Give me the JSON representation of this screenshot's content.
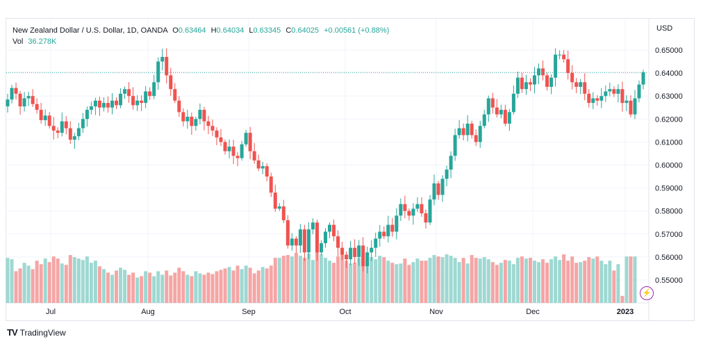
{
  "legend": {
    "symbol": "New Zealand Dollar / U.S. Dollar, 1D, OANDA",
    "open_label": "O",
    "open": "0.63464",
    "high_label": "H",
    "high": "0.64034",
    "low_label": "L",
    "low": "0.63345",
    "close_label": "C",
    "close": "0.64025",
    "change": "+0.00561 (+0.88%)",
    "vol_label": "Vol",
    "vol": "36.278K"
  },
  "brand": {
    "name": "TradingView",
    "logo": "TV"
  },
  "colors": {
    "up": "#26a69a",
    "down": "#ef5350",
    "up_vol": "#9ed8d2",
    "down_vol": "#f5a5a5",
    "grid": "#f0f3fa",
    "text": "#131722"
  },
  "icons": {
    "brand": "tradingview-logo-icon",
    "bolt": "lightning-icon"
  },
  "chart_data": {
    "type": "candlestick",
    "currency_label": "USD",
    "y_ticks": [
      "0.65000",
      "0.64000",
      "0.63000",
      "0.62000",
      "0.61000",
      "0.60000",
      "0.59000",
      "0.58000",
      "0.57000",
      "0.56000",
      "0.55000"
    ],
    "ylim": [
      0.5445,
      0.6555
    ],
    "x_ticks": [
      "Jul",
      "Aug",
      "Sep",
      "Oct",
      "Nov",
      "Dec",
      "2023"
    ],
    "x_tick_dates": [
      "2022-07-01",
      "2022-08-01",
      "2022-09-01",
      "2022-10-01",
      "2022-11-01",
      "2022-12-01",
      "2023-01-01"
    ],
    "last_price": 0.64025,
    "close_series": [
      0.6285,
      0.6335,
      0.631,
      0.6255,
      0.629,
      0.63,
      0.6265,
      0.624,
      0.6195,
      0.6215,
      0.617,
      0.615,
      0.614,
      0.619,
      0.616,
      0.611,
      0.6125,
      0.616,
      0.62,
      0.624,
      0.6255,
      0.628,
      0.625,
      0.627,
      0.625,
      0.628,
      0.626,
      0.631,
      0.633,
      0.63,
      0.626,
      0.628,
      0.627,
      0.632,
      0.63,
      0.636,
      0.645,
      0.647,
      0.639,
      0.633,
      0.628,
      0.623,
      0.619,
      0.621,
      0.617,
      0.62,
      0.624,
      0.619,
      0.617,
      0.615,
      0.612,
      0.61,
      0.606,
      0.608,
      0.604,
      0.603,
      0.609,
      0.614,
      0.606,
      0.602,
      0.5985,
      0.5995,
      0.595,
      0.588,
      0.581,
      0.582,
      0.576,
      0.565,
      0.568,
      0.565,
      0.572,
      0.562,
      0.572,
      0.575,
      0.562,
      0.566,
      0.571,
      0.574,
      0.569,
      0.564,
      0.561,
      0.559,
      0.564,
      0.56,
      0.565,
      0.556,
      0.562,
      0.564,
      0.568,
      0.571,
      0.569,
      0.574,
      0.571,
      0.578,
      0.583,
      0.58,
      0.578,
      0.581,
      0.583,
      0.579,
      0.575,
      0.585,
      0.592,
      0.587,
      0.594,
      0.598,
      0.604,
      0.613,
      0.616,
      0.613,
      0.618,
      0.613,
      0.61,
      0.617,
      0.622,
      0.629,
      0.625,
      0.622,
      0.624,
      0.618,
      0.623,
      0.631,
      0.638,
      0.633,
      0.636,
      0.635,
      0.639,
      0.642,
      0.639,
      0.634,
      0.638,
      0.648,
      0.648,
      0.646,
      0.64,
      0.636,
      0.634,
      0.636,
      0.631,
      0.627,
      0.629,
      0.628,
      0.63,
      0.632,
      0.633,
      0.631,
      0.633,
      0.627,
      0.628,
      0.622,
      0.629,
      0.635,
      0.6403
    ],
    "volume_series": [
      64,
      62,
      45,
      49,
      57,
      53,
      48,
      60,
      55,
      63,
      58,
      66,
      63,
      56,
      54,
      68,
      65,
      63,
      61,
      66,
      57,
      60,
      52,
      48,
      43,
      40,
      46,
      50,
      47,
      40,
      43,
      36,
      38,
      45,
      43,
      38,
      45,
      40,
      46,
      39,
      43,
      50,
      45,
      40,
      38,
      45,
      42,
      40,
      43,
      41,
      45,
      47,
      49,
      51,
      46,
      53,
      48,
      53,
      50,
      42,
      46,
      51,
      49,
      53,
      64,
      64,
      67,
      68,
      66,
      71,
      67,
      64,
      70,
      61,
      74,
      69,
      64,
      60,
      57,
      66,
      69,
      60,
      56,
      57,
      64,
      60,
      63,
      65,
      62,
      67,
      65,
      60,
      57,
      55,
      56,
      63,
      54,
      58,
      63,
      60,
      60,
      64,
      68,
      66,
      65,
      69,
      67,
      64,
      58,
      64,
      56,
      68,
      64,
      63,
      65,
      62,
      58,
      54,
      57,
      61,
      60,
      55,
      64,
      66,
      63,
      64,
      60,
      58,
      62,
      57,
      62,
      66,
      61,
      69,
      60,
      66,
      57,
      58,
      60,
      65,
      63,
      66,
      60,
      55,
      60,
      46,
      55,
      10,
      66,
      66,
      66
    ]
  }
}
